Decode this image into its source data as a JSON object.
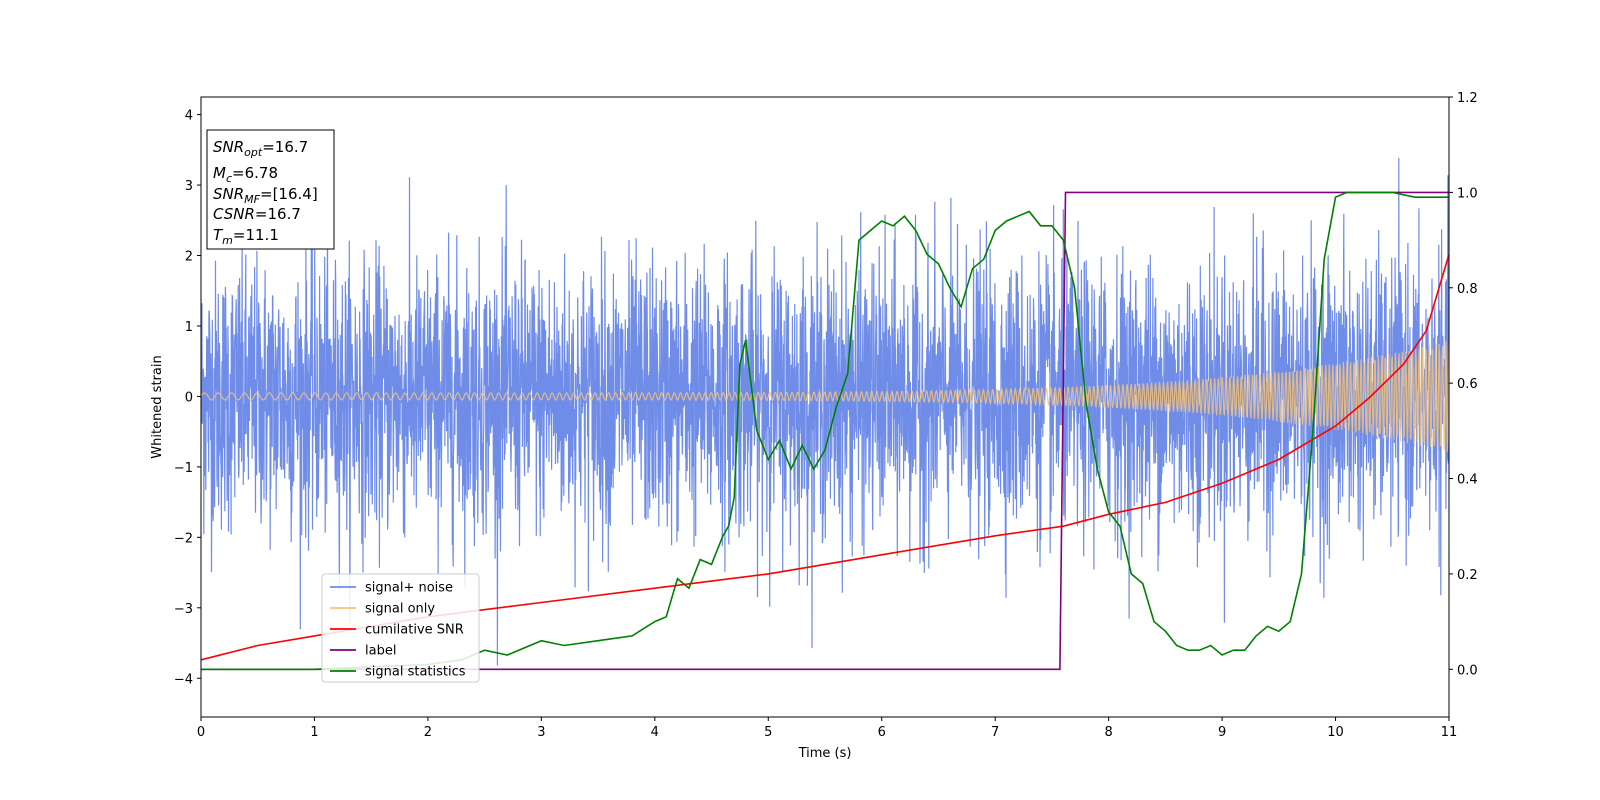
{
  "chart_data": {
    "type": "line",
    "title": "",
    "xlabel": "Time (s)",
    "ylabel": "Whitened strain",
    "xlim": [
      0,
      11
    ],
    "ylim_left": [
      -4.55,
      4.25
    ],
    "ylim_right": [
      -0.1,
      1.2
    ],
    "x_ticks": [
      "0",
      "1",
      "2",
      "3",
      "4",
      "5",
      "6",
      "7",
      "8",
      "9",
      "10",
      "11"
    ],
    "y_ticks_left": [
      "4",
      "3",
      "2",
      "1",
      "0",
      "−1",
      "−2",
      "−3",
      "−4"
    ],
    "y_ticks_right": [
      "1.2",
      "1.0",
      "0.8",
      "0.6",
      "0.4",
      "0.2",
      "0.0"
    ],
    "grid": false,
    "legend_position": "lower-left",
    "info_box": {
      "snr_opt": {
        "base": "SNR",
        "sub": "opt",
        "value": "=16.7"
      },
      "mc": {
        "base": "M",
        "sub": "c",
        "value": "=6.78"
      },
      "snr_mf": {
        "base": "SNR",
        "sub": "MF",
        "value": "=[16.4]"
      },
      "csnr": {
        "base": "CSNR",
        "sub": "",
        "value": "=16.7"
      },
      "tm": {
        "base": "T",
        "sub": "m",
        "value": "=11.1"
      }
    },
    "series": [
      {
        "name": "signal+ noise",
        "color": "#6f8de8",
        "axis": "left",
        "kind": "noise",
        "envelope": 2.0,
        "approx_max": 3.55,
        "approx_min": -4.15
      },
      {
        "name": "signal only",
        "color": "#f5c27a",
        "axis": "left",
        "kind": "chirp",
        "amplitude_start": 0.05,
        "amplitude_end": 0.8
      },
      {
        "name": "cumilative SNR",
        "color": "#ff0000",
        "axis": "right",
        "x": [
          0,
          0.5,
          1,
          2,
          3,
          4,
          5,
          6,
          7,
          7.6,
          8,
          8.5,
          9,
          9.5,
          10,
          10.3,
          10.6,
          10.8,
          11
        ],
        "y": [
          0.02,
          0.05,
          0.07,
          0.11,
          0.14,
          0.17,
          0.2,
          0.24,
          0.28,
          0.3,
          0.325,
          0.35,
          0.39,
          0.44,
          0.51,
          0.57,
          0.64,
          0.71,
          0.87
        ]
      },
      {
        "name": "label",
        "color": "#800080",
        "axis": "right",
        "x": [
          0,
          7.57,
          7.62,
          11
        ],
        "y": [
          0,
          0,
          1,
          1
        ]
      },
      {
        "name": "signal statistics",
        "color": "#008000",
        "axis": "right",
        "x": [
          0,
          1,
          2,
          2.3,
          2.5,
          2.7,
          3.0,
          3.2,
          3.5,
          3.8,
          4.0,
          4.1,
          4.2,
          4.3,
          4.4,
          4.5,
          4.6,
          4.65,
          4.7,
          4.75,
          4.8,
          4.9,
          5.0,
          5.1,
          5.2,
          5.3,
          5.4,
          5.5,
          5.6,
          5.7,
          5.8,
          5.9,
          6.0,
          6.1,
          6.2,
          6.3,
          6.4,
          6.5,
          6.6,
          6.7,
          6.8,
          6.9,
          7.0,
          7.1,
          7.2,
          7.3,
          7.4,
          7.5,
          7.6,
          7.7,
          7.8,
          7.9,
          8.0,
          8.1,
          8.2,
          8.3,
          8.4,
          8.5,
          8.6,
          8.7,
          8.8,
          8.9,
          9.0,
          9.1,
          9.2,
          9.3,
          9.4,
          9.5,
          9.6,
          9.7,
          9.8,
          9.9,
          10.0,
          10.1,
          10.5,
          10.7,
          10.8,
          10.9,
          11
        ],
        "y": [
          0,
          0,
          0.01,
          0.02,
          0.04,
          0.03,
          0.06,
          0.05,
          0.06,
          0.07,
          0.1,
          0.11,
          0.19,
          0.17,
          0.23,
          0.22,
          0.28,
          0.3,
          0.36,
          0.64,
          0.69,
          0.5,
          0.44,
          0.48,
          0.42,
          0.47,
          0.42,
          0.46,
          0.55,
          0.62,
          0.9,
          0.92,
          0.94,
          0.93,
          0.95,
          0.92,
          0.87,
          0.85,
          0.8,
          0.76,
          0.84,
          0.86,
          0.92,
          0.94,
          0.95,
          0.96,
          0.93,
          0.93,
          0.9,
          0.8,
          0.56,
          0.42,
          0.33,
          0.3,
          0.2,
          0.18,
          0.1,
          0.08,
          0.05,
          0.04,
          0.04,
          0.05,
          0.03,
          0.04,
          0.04,
          0.07,
          0.09,
          0.08,
          0.1,
          0.2,
          0.5,
          0.86,
          0.99,
          1.0,
          1.0,
          0.99,
          0.99,
          0.99,
          0.99
        ]
      }
    ]
  }
}
